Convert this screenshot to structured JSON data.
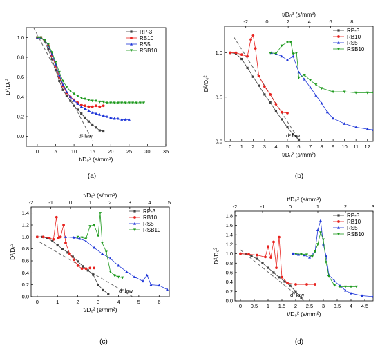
{
  "figure": {
    "panels": [
      {
        "id": "a",
        "caption": "(a)"
      },
      {
        "id": "b",
        "caption": "(b)"
      },
      {
        "id": "c",
        "caption": "(c)"
      },
      {
        "id": "d",
        "caption": "(d)"
      }
    ],
    "colors": {
      "RP-3": "#404040",
      "RB10": "#e8231f",
      "RS5": "#1d35d8",
      "RSB10": "#1e9a1e",
      "law": "#666666"
    }
  },
  "chart_data": [
    {
      "id": "a",
      "type": "scatter",
      "xlabel": "t/D₀² (s/mm²)",
      "ylabel": "D²/D₀²",
      "xlim": [
        -3,
        35
      ],
      "ylim": [
        -0.1,
        1.1
      ],
      "xticks": [
        0,
        5,
        10,
        15,
        20,
        25,
        30,
        35
      ],
      "yticks": [
        0.0,
        0.2,
        0.4,
        0.6,
        0.8,
        1.0
      ],
      "legend": {
        "position": "top-right",
        "entries": [
          "RP-3",
          "RB10",
          "RS5",
          "RSB10"
        ]
      },
      "annotations": [
        {
          "text": "d² law"
        }
      ],
      "law_line": {
        "x": [
          -1,
          15
        ],
        "y": [
          1.1,
          -0.04
        ]
      },
      "series": [
        {
          "name": "RP-3",
          "x": [
            0,
            1,
            2,
            3,
            4,
            5,
            6,
            7,
            8,
            9,
            10,
            11,
            12,
            13,
            14,
            15,
            16,
            17,
            18
          ],
          "y": [
            1.0,
            1.0,
            0.96,
            0.88,
            0.78,
            0.67,
            0.56,
            0.47,
            0.41,
            0.36,
            0.31,
            0.27,
            0.23,
            0.19,
            0.15,
            0.12,
            0.09,
            0.06,
            0.05
          ]
        },
        {
          "name": "RB10",
          "x": [
            0,
            1,
            2,
            3,
            4,
            5,
            6,
            7,
            8,
            9,
            10,
            11,
            12,
            13,
            14,
            15,
            16,
            17,
            18
          ],
          "y": [
            1.0,
            1.0,
            0.97,
            0.92,
            0.82,
            0.71,
            0.6,
            0.51,
            0.44,
            0.4,
            0.37,
            0.34,
            0.32,
            0.31,
            0.3,
            0.3,
            0.31,
            0.3,
            0.31
          ]
        },
        {
          "name": "RS5",
          "x": [
            0,
            1,
            2,
            3,
            4,
            5,
            6,
            7,
            8,
            9,
            10,
            11,
            12,
            13,
            14,
            15,
            16,
            17,
            18,
            19,
            20,
            21,
            22,
            23,
            24,
            25
          ],
          "y": [
            1.0,
            1.0,
            0.97,
            0.92,
            0.83,
            0.73,
            0.62,
            0.52,
            0.45,
            0.4,
            0.36,
            0.33,
            0.3,
            0.28,
            0.26,
            0.24,
            0.23,
            0.22,
            0.21,
            0.2,
            0.19,
            0.18,
            0.18,
            0.17,
            0.17,
            0.17
          ]
        },
        {
          "name": "RSB10",
          "x": [
            0,
            1,
            2,
            3,
            4,
            5,
            6,
            7,
            8,
            9,
            10,
            11,
            12,
            13,
            14,
            15,
            16,
            17,
            18,
            19,
            20,
            21,
            22,
            23,
            24,
            25,
            26,
            27,
            28,
            29
          ],
          "y": [
            1.0,
            1.0,
            0.97,
            0.93,
            0.85,
            0.75,
            0.65,
            0.56,
            0.5,
            0.46,
            0.43,
            0.41,
            0.39,
            0.38,
            0.37,
            0.36,
            0.36,
            0.35,
            0.35,
            0.34,
            0.34,
            0.34,
            0.34,
            0.34,
            0.34,
            0.34,
            0.34,
            0.34,
            0.34,
            0.34
          ]
        }
      ]
    },
    {
      "id": "b",
      "type": "scatter",
      "xlabel": "t/D₀² (s/mm²)",
      "ylabel": "D²/D₀²",
      "x2label": "t/D₀² (s/mm²)",
      "xlim": [
        -0.5,
        12.5
      ],
      "ylim": [
        0,
        1.3
      ],
      "x2lim": [
        -4,
        10
      ],
      "xticks": [
        0,
        1,
        2,
        3,
        4,
        5,
        6,
        7,
        8,
        9,
        10,
        11,
        12
      ],
      "yticks": [
        0.0,
        0.5,
        1.0
      ],
      "x2ticks": [
        -2,
        0,
        2,
        4,
        6,
        8
      ],
      "legend": {
        "position": "top-right",
        "entries": [
          "RP-3",
          "RB10",
          "RS5",
          "RSB10"
        ]
      },
      "annotations": [
        {
          "text": "d² law"
        }
      ],
      "law_line": {
        "x": [
          0.3,
          6.1
        ],
        "y": [
          1.18,
          0.0
        ]
      },
      "series": [
        {
          "name": "RP-3",
          "x": [
            0,
            0.5,
            1,
            1.5,
            2,
            2.5,
            3,
            3.5,
            4,
            4.5,
            5,
            5.5,
            6
          ],
          "y": [
            1.0,
            0.99,
            0.93,
            0.83,
            0.73,
            0.63,
            0.53,
            0.44,
            0.34,
            0.25,
            0.16,
            0.08,
            0.02
          ]
        },
        {
          "name": "RB10",
          "x": [
            0,
            0.5,
            1,
            1.5,
            1.8,
            2,
            2.2,
            2.5,
            3,
            3.5,
            4,
            4.5,
            5
          ],
          "y": [
            1.0,
            1.0,
            0.98,
            0.96,
            1.15,
            1.2,
            1.05,
            0.74,
            0.62,
            0.53,
            0.42,
            0.33,
            0.32
          ]
        },
        {
          "name": "RS5",
          "x": [
            3.6,
            4,
            4.5,
            5,
            5.5,
            6,
            6.5,
            7,
            7.5,
            8,
            8.5,
            9,
            10,
            11,
            12,
            12.5
          ],
          "y": [
            1.0,
            0.99,
            0.96,
            0.92,
            0.96,
            0.78,
            0.7,
            0.61,
            0.52,
            0.43,
            0.33,
            0.26,
            0.2,
            0.16,
            0.14,
            0.13
          ]
        },
        {
          "name": "RSB10",
          "x": [
            3.5,
            4,
            4.5,
            5,
            5.3,
            5.5,
            5.8,
            6,
            6.5,
            7,
            7.5,
            8,
            9,
            10,
            11,
            12,
            12.5
          ],
          "y": [
            1.0,
            0.99,
            1.08,
            1.12,
            1.12,
            0.99,
            1.0,
            0.72,
            0.75,
            0.69,
            0.64,
            0.6,
            0.56,
            0.56,
            0.55,
            0.55,
            0.55
          ]
        }
      ]
    },
    {
      "id": "c",
      "type": "scatter",
      "xlabel": "t/D₀² (s/mm²)",
      "ylabel": "D²/D₀²",
      "x2label": "t/D₀² (s/mm²)",
      "xlim": [
        -0.3,
        6.5
      ],
      "ylim": [
        0,
        1.5
      ],
      "x2lim": [
        -2,
        5
      ],
      "xticks": [
        0,
        1,
        2,
        3,
        4,
        5,
        6
      ],
      "yticks": [
        0.0,
        0.2,
        0.4,
        0.6,
        0.8,
        1.0,
        1.2,
        1.4
      ],
      "x2ticks": [
        -2,
        -1,
        0,
        1,
        2,
        3,
        4,
        5
      ],
      "legend": {
        "position": "top-right",
        "entries": [
          "RP-3",
          "RB10",
          "RS5",
          "RSB10"
        ]
      },
      "annotations": [
        {
          "text": "d² law"
        }
      ],
      "law_line": {
        "x": [
          0.1,
          4.7
        ],
        "y": [
          0.92,
          0.0
        ]
      },
      "series": [
        {
          "name": "RP-3",
          "x": [
            0,
            0.25,
            0.5,
            0.75,
            1,
            1.25,
            1.5,
            1.75,
            2,
            2.25,
            2.5,
            2.75,
            3,
            3.25,
            3.5
          ],
          "y": [
            1.0,
            1.0,
            0.98,
            0.93,
            0.86,
            0.8,
            0.74,
            0.67,
            0.59,
            0.51,
            0.44,
            0.37,
            0.2,
            0.11,
            0.05
          ]
        },
        {
          "name": "RB10",
          "x": [
            0,
            0.3,
            0.6,
            0.8,
            0.95,
            1.05,
            1.15,
            1.3,
            1.4,
            1.6,
            1.8,
            2,
            2.2,
            2.4,
            2.6,
            2.8
          ],
          "y": [
            1.0,
            1.0,
            0.98,
            0.96,
            1.33,
            0.98,
            1.0,
            1.2,
            0.9,
            0.72,
            0.62,
            0.52,
            0.47,
            0.47,
            0.48,
            0.48
          ]
        },
        {
          "name": "RS5",
          "x": [
            1.4,
            1.8,
            2.1,
            2.4,
            2.8,
            3.2,
            3.6,
            4,
            4.4,
            4.8,
            5.2,
            5.4,
            5.6,
            6,
            6.4
          ],
          "y": [
            1.0,
            0.99,
            0.97,
            0.93,
            0.82,
            0.72,
            0.64,
            0.52,
            0.42,
            0.33,
            0.26,
            0.36,
            0.2,
            0.19,
            0.12
          ]
        },
        {
          "name": "RSB10",
          "x": [
            2,
            2.2,
            2.4,
            2.6,
            2.8,
            3,
            3.1,
            3.2,
            3.4,
            3.6,
            3.8,
            4,
            4.2
          ],
          "y": [
            1.0,
            0.99,
            0.97,
            1.18,
            1.2,
            1.02,
            1.4,
            0.9,
            0.75,
            0.42,
            0.36,
            0.33,
            0.32
          ]
        }
      ]
    },
    {
      "id": "d",
      "type": "scatter",
      "xlabel": "t/D₀² (s/mm²)",
      "ylabel": "D²/D₀²",
      "x2label": "t/D₀² (s/mm²)",
      "xlim": [
        -0.2,
        4.8
      ],
      "ylim": [
        0,
        1.9
      ],
      "x2lim": [
        -2,
        3
      ],
      "xticks": [
        0.0,
        0.5,
        1.0,
        1.5,
        2.0,
        2.5,
        3.0,
        3.5,
        4.0,
        4.5
      ],
      "yticks": [
        0.0,
        0.2,
        0.4,
        0.6,
        0.8,
        1.0,
        1.2,
        1.4,
        1.6,
        1.8
      ],
      "x2ticks": [
        -2,
        -1,
        0,
        1,
        2,
        3
      ],
      "legend": {
        "position": "top-right",
        "entries": [
          "RP-3",
          "RB10",
          "RS5",
          "RSB10"
        ]
      },
      "annotations": [
        {
          "text": "d² law"
        }
      ],
      "law_line": {
        "x": [
          0.0,
          2.3
        ],
        "y": [
          1.08,
          0.0
        ]
      },
      "series": [
        {
          "name": "RP-3",
          "x": [
            0,
            0.2,
            0.4,
            0.6,
            0.8,
            1.0,
            1.2,
            1.4,
            1.6,
            1.8,
            2.0,
            2.2
          ],
          "y": [
            1.0,
            0.99,
            0.95,
            0.89,
            0.8,
            0.7,
            0.6,
            0.5,
            0.41,
            0.32,
            0.2,
            0.06
          ]
        },
        {
          "name": "RB10",
          "x": [
            0,
            0.3,
            0.6,
            0.9,
            1.0,
            1.1,
            1.2,
            1.3,
            1.4,
            1.5,
            1.7,
            2.0,
            2.4,
            2.7
          ],
          "y": [
            1.0,
            0.99,
            0.97,
            0.93,
            1.15,
            0.92,
            1.25,
            0.7,
            1.35,
            0.5,
            0.38,
            0.35,
            0.35,
            0.35
          ]
        },
        {
          "name": "RS5",
          "x": [
            1.9,
            2.1,
            2.3,
            2.5,
            2.7,
            2.8,
            2.9,
            3.0,
            3.1,
            3.2,
            3.4,
            3.6,
            3.8,
            4.0,
            4.4,
            4.8
          ],
          "y": [
            1.0,
            0.98,
            0.97,
            0.92,
            1.05,
            1.5,
            1.7,
            1.2,
            0.95,
            0.55,
            0.42,
            0.32,
            0.22,
            0.16,
            0.11,
            0.09
          ]
        },
        {
          "name": "RSB10",
          "x": [
            2.0,
            2.2,
            2.4,
            2.6,
            2.7,
            2.8,
            2.9,
            3.0,
            3.1,
            3.2,
            3.4,
            3.6,
            3.8,
            4.0,
            4.2
          ],
          "y": [
            1.0,
            0.99,
            0.98,
            0.94,
            1.05,
            1.2,
            1.45,
            1.3,
            0.82,
            0.52,
            0.33,
            0.3,
            0.3,
            0.3,
            0.3
          ]
        }
      ]
    }
  ]
}
